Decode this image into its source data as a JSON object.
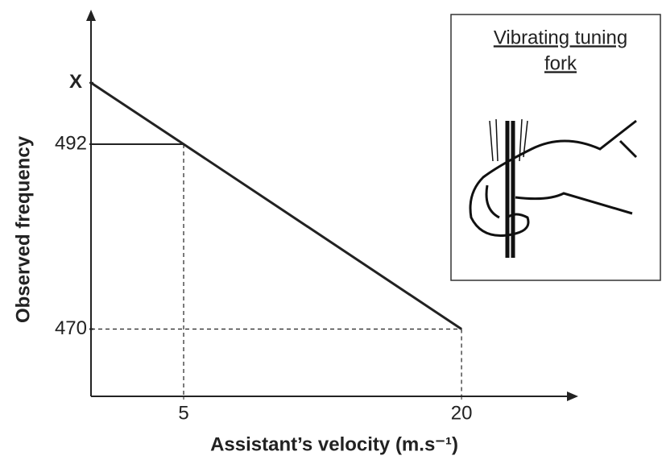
{
  "chart_data": {
    "type": "line",
    "x_label": "Assistant’s velocity (m.s⁻¹)",
    "y_label": "Observed frequency",
    "x": [
      0,
      5,
      20
    ],
    "series": [
      {
        "color": "#222222",
        "values": [
          499.3,
          492,
          470
        ]
      }
    ],
    "xlim": [
      0,
      26.3
    ],
    "ylim": [
      462,
      508
    ],
    "xticks": [
      5,
      20
    ],
    "yticks": [
      {
        "value": 499.3,
        "label": "X"
      },
      492,
      470
    ],
    "inset": {
      "label_line1": "Vibrating tuning",
      "label_line2": "fork"
    }
  }
}
